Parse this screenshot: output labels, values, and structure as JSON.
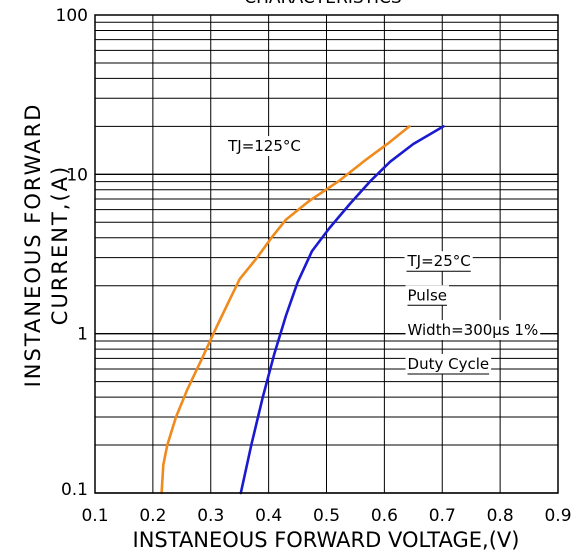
{
  "chart_data": {
    "type": "line",
    "title": "CHARACTERISTICS",
    "xlabel": "INSTANEOUS FORWARD VOLTAGE,(V)",
    "ylabel_line1": "INSTANEOUS FORWARD",
    "ylabel_line2": "CURRENT,(A)",
    "xlim": [
      0.1,
      0.9
    ],
    "ylim": [
      0.1,
      100
    ],
    "yscale": "log",
    "grid": true,
    "x_ticks": [
      0.1,
      0.2,
      0.3,
      0.4,
      0.5,
      0.6,
      0.7,
      0.8,
      0.9
    ],
    "x_tick_labels": [
      "0.1",
      "0.2",
      "0.3",
      "0.4",
      "0.5",
      "0.6",
      "0.7",
      "0.8",
      "0.9"
    ],
    "y_ticks": [
      0.1,
      1,
      10,
      100
    ],
    "y_tick_labels": [
      "0.1",
      "1",
      "10",
      "100"
    ],
    "series": [
      {
        "color": "#f08a1c",
        "points": [
          [
            0.215,
            0.1
          ],
          [
            0.218,
            0.15
          ],
          [
            0.225,
            0.2
          ],
          [
            0.24,
            0.3
          ],
          [
            0.26,
            0.45
          ],
          [
            0.285,
            0.7
          ],
          [
            0.31,
            1.1
          ],
          [
            0.335,
            1.7
          ],
          [
            0.35,
            2.2
          ],
          [
            0.38,
            3.0
          ],
          [
            0.405,
            4.0
          ],
          [
            0.43,
            5.2
          ],
          [
            0.47,
            6.8
          ],
          [
            0.52,
            9.0
          ],
          [
            0.57,
            12.5
          ],
          [
            0.61,
            16.0
          ],
          [
            0.643,
            20.0
          ]
        ]
      },
      {
        "color": "#1a1ad0",
        "points": [
          [
            0.352,
            0.1
          ],
          [
            0.37,
            0.2
          ],
          [
            0.39,
            0.4
          ],
          [
            0.41,
            0.75
          ],
          [
            0.43,
            1.3
          ],
          [
            0.45,
            2.1
          ],
          [
            0.475,
            3.3
          ],
          [
            0.505,
            4.6
          ],
          [
            0.54,
            6.5
          ],
          [
            0.575,
            9.0
          ],
          [
            0.61,
            12.0
          ],
          [
            0.65,
            15.5
          ],
          [
            0.702,
            20.0
          ]
        ]
      }
    ],
    "annotations": [
      {
        "text": "TJ=125°C",
        "x": 0.33,
        "y": 14.0,
        "underline": false
      },
      {
        "text": "TJ=25°C",
        "x": 0.64,
        "y": 2.65,
        "underline": true
      },
      {
        "text": "Pulse",
        "x": 0.64,
        "y": 1.62,
        "underline": true
      },
      {
        "text": "Width=300μs 1%",
        "x": 0.64,
        "y": 0.98,
        "underline": false
      },
      {
        "text": "Duty Cycle",
        "x": 0.64,
        "y": 0.6,
        "underline": true
      }
    ]
  }
}
